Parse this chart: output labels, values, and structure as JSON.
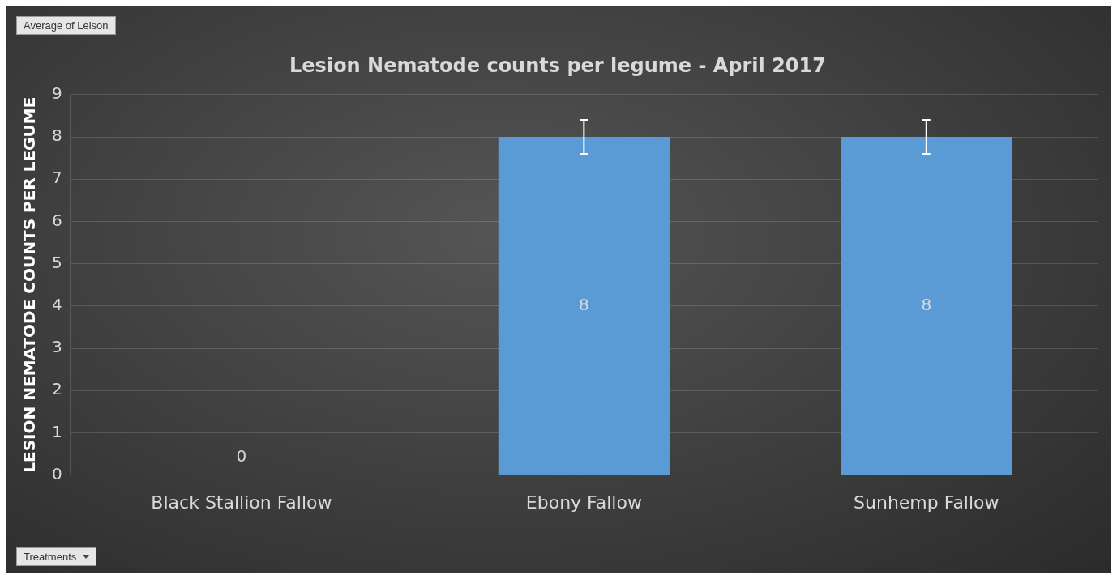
{
  "chart_data": {
    "type": "bar",
    "title": "Lesion Nematode counts per legume - April 2017",
    "ylabel": "LESION NEMATODE COUNTS PER LEGUME",
    "categories": [
      "Black Stallion Fallow",
      "Ebony Fallow",
      "Sunhemp Fallow"
    ],
    "values": [
      0,
      8,
      8
    ],
    "color": "#5b9bd5",
    "errors": [
      null,
      0.4,
      0.4
    ],
    "ylim": [
      0,
      9
    ],
    "yticks": [
      0,
      1,
      2,
      3,
      4,
      5,
      6,
      7,
      8,
      9
    ],
    "grid": true,
    "data_labels": true,
    "annotations": [
      "Average of Leison",
      "Treatments"
    ]
  }
}
